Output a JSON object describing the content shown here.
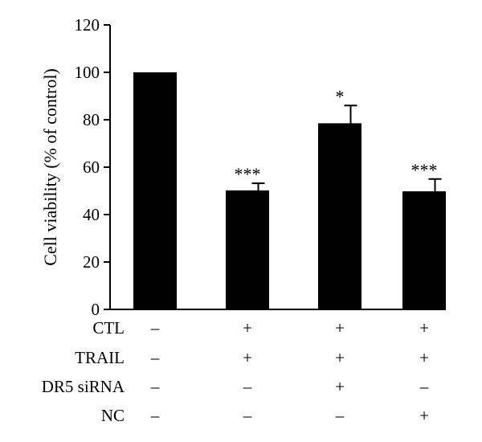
{
  "chart_data": {
    "type": "bar",
    "ylabel": "Cell viability (% of control)",
    "ylim": [
      0,
      120
    ],
    "yticks": [
      0,
      20,
      40,
      60,
      80,
      100,
      120
    ],
    "values": [
      100,
      50.2,
      78.5,
      49.8
    ],
    "errors": [
      0,
      3,
      7.5,
      5.2
    ],
    "significance": [
      "",
      "***",
      "*",
      "***"
    ],
    "conditions": [
      {
        "label": "CTL",
        "marks": [
          "–",
          "+",
          "+",
          "+"
        ]
      },
      {
        "label": "TRAIL",
        "marks": [
          "–",
          "+",
          "+",
          "+"
        ]
      },
      {
        "label": "DR5 siRNA",
        "marks": [
          "–",
          "–",
          "+",
          "–"
        ]
      },
      {
        "label": "NC",
        "marks": [
          "–",
          "–",
          "–",
          "+"
        ]
      }
    ],
    "bar_color": "#000000"
  }
}
